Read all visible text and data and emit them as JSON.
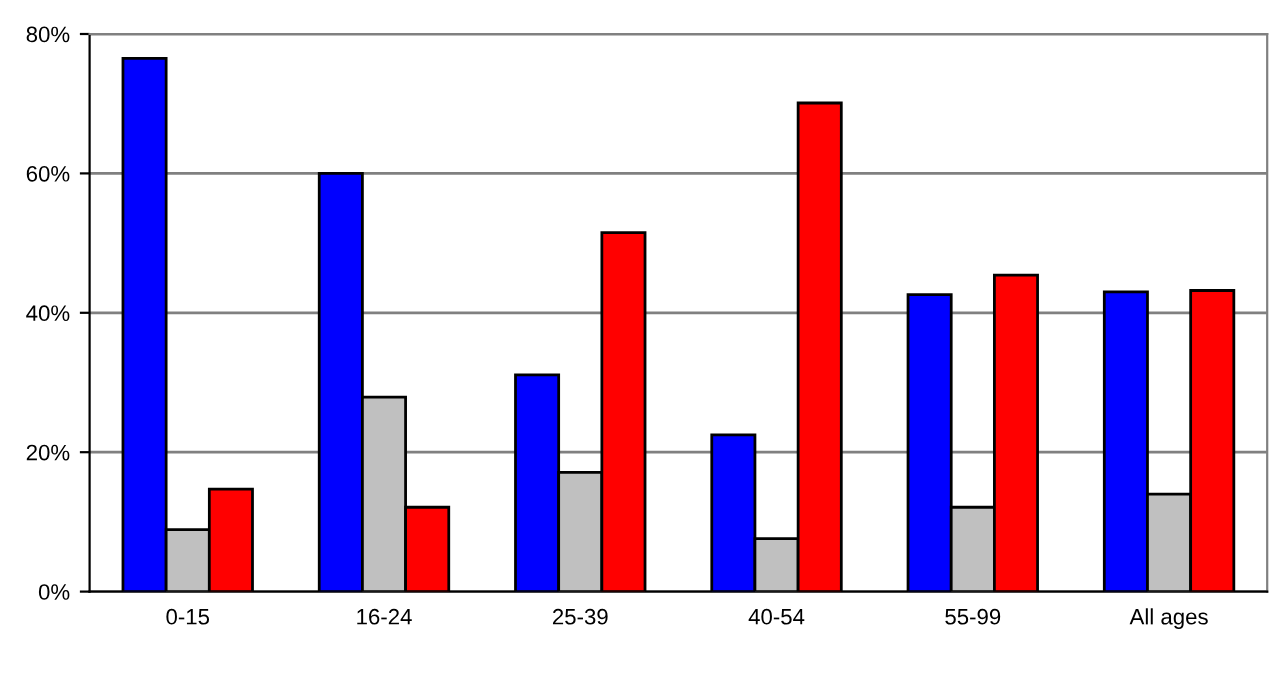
{
  "chart_data": {
    "type": "bar",
    "categories": [
      "0-15",
      "16-24",
      "25-39",
      "40-54",
      "55-99",
      "All ages"
    ],
    "series": [
      {
        "color": "#0000ff",
        "values": [
          76.5,
          60,
          31.1,
          22.5,
          42.6,
          43.0
        ]
      },
      {
        "color": "#c0c0c0",
        "values": [
          8.9,
          27.9,
          17.1,
          7.6,
          12.1,
          14.0
        ]
      },
      {
        "color": "#ff0000",
        "values": [
          14.7,
          12.1,
          51.5,
          70.1,
          45.4,
          43.2
        ]
      }
    ],
    "ylim": [
      0,
      80
    ],
    "yticks": [
      {
        "value": 0,
        "label": "0%"
      },
      {
        "value": 20,
        "label": "20%"
      },
      {
        "value": 40,
        "label": "40%"
      },
      {
        "value": 60,
        "label": "60%"
      },
      {
        "value": 80,
        "label": "80%"
      }
    ],
    "grid": "y"
  }
}
